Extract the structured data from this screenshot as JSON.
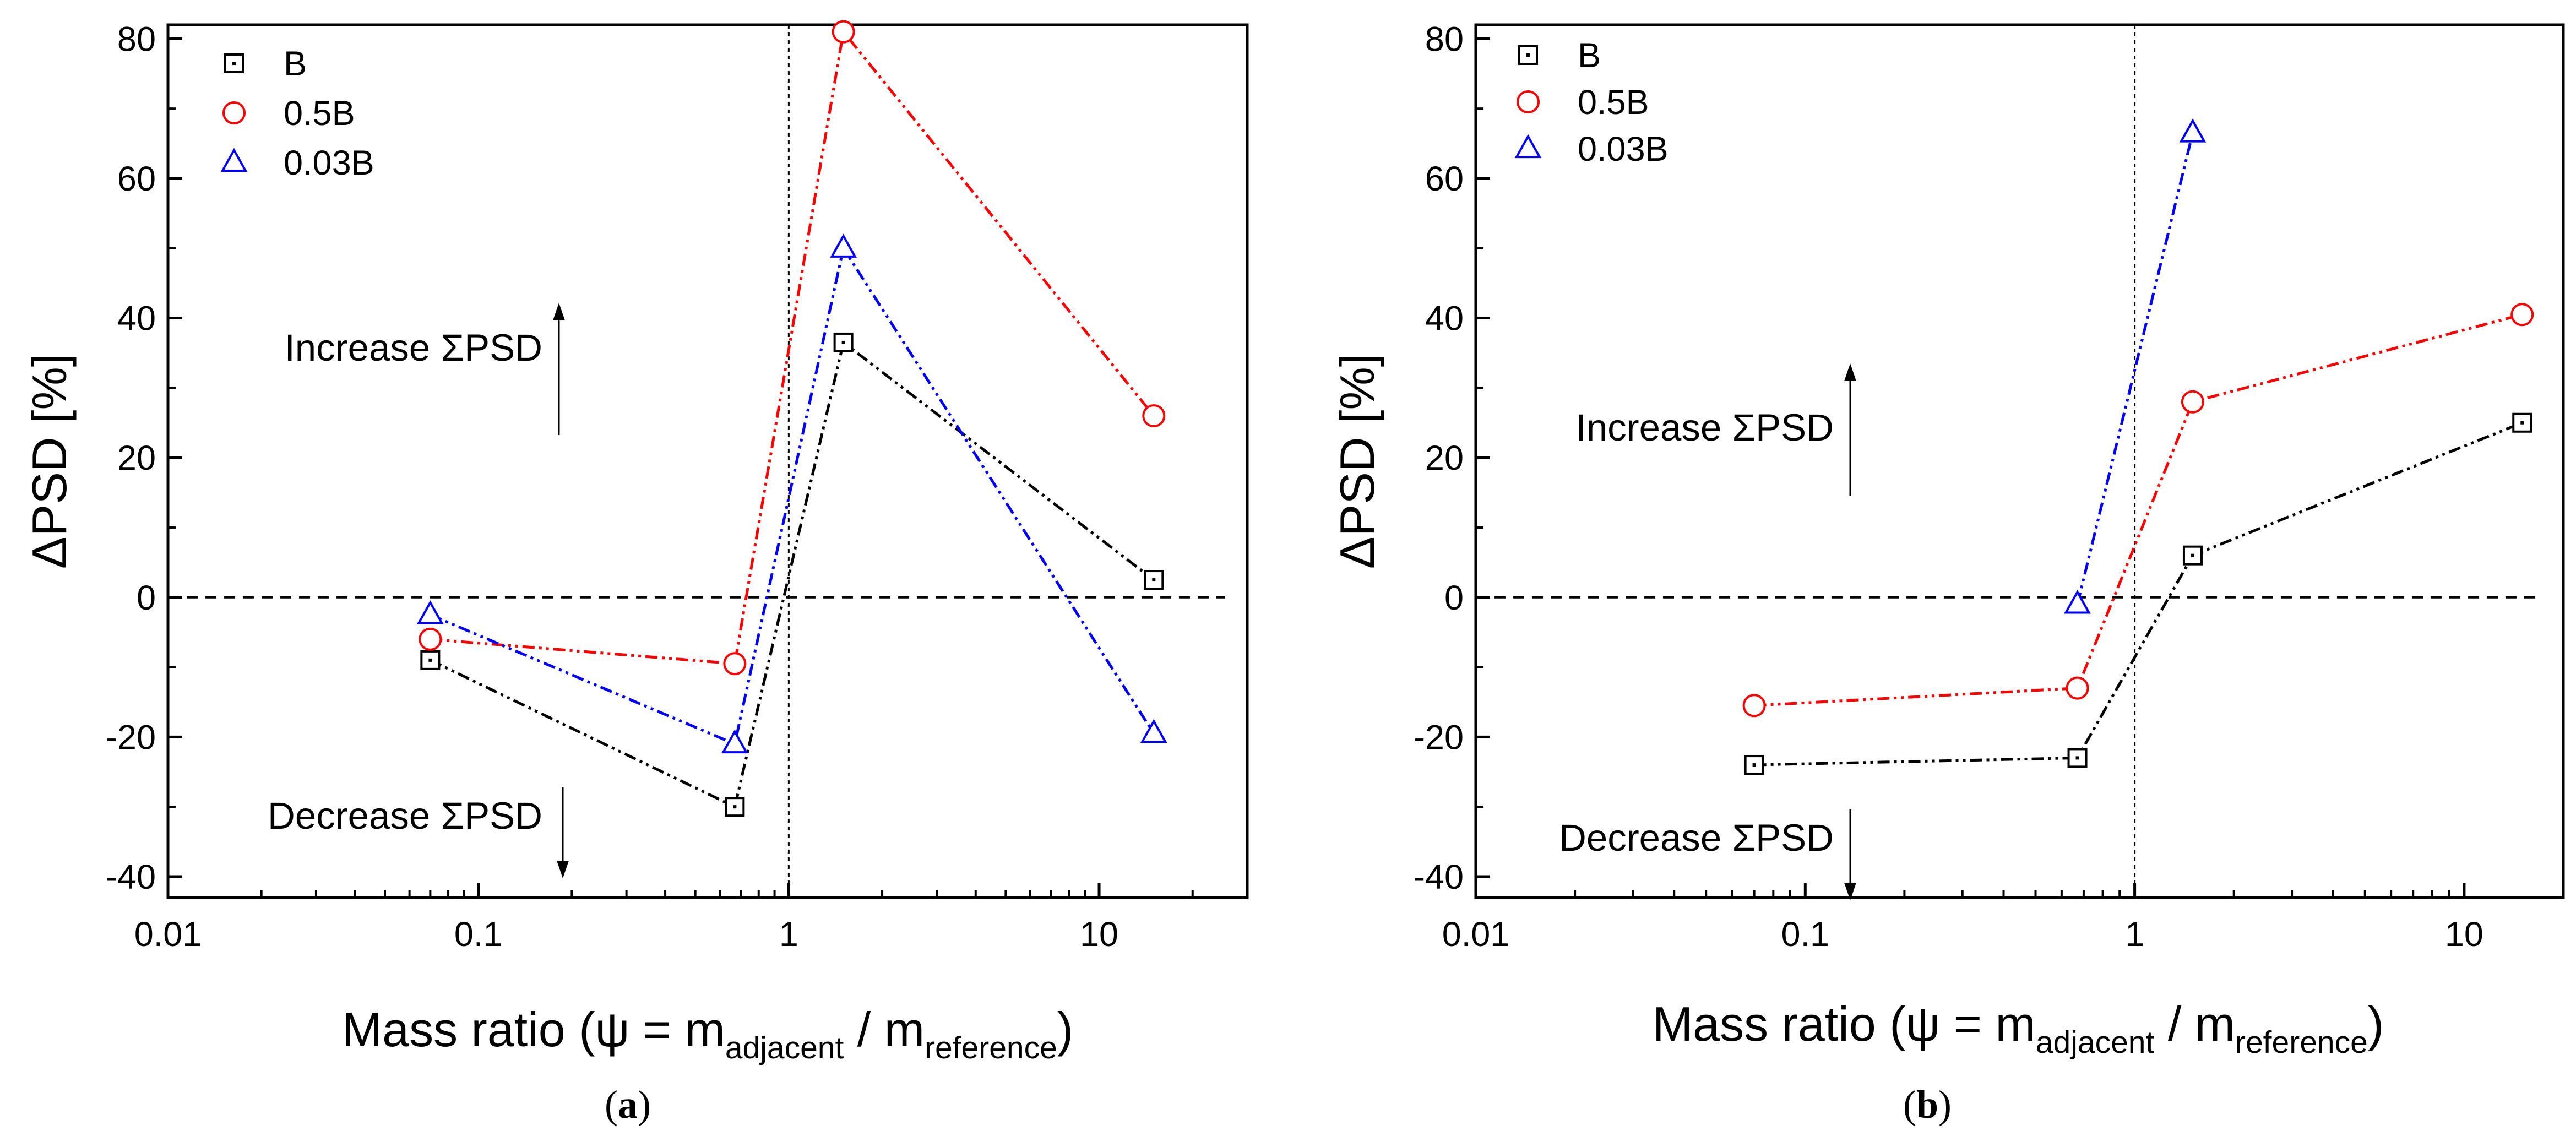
{
  "chart_data": [
    {
      "panel": "a",
      "type": "line",
      "xscale": "log",
      "xlim": [
        0.01,
        30
      ],
      "ylim": [
        -43,
        82
      ],
      "xticks": [
        0.01,
        0.1,
        1,
        10
      ],
      "xtick_labels": [
        "0.01",
        "0.1",
        "1",
        "10"
      ],
      "yticks": [
        -40,
        -20,
        0,
        20,
        40,
        60,
        80
      ],
      "ytick_labels": [
        "-40",
        "-20",
        "0",
        "20",
        "40",
        "60",
        "80"
      ],
      "ylabel": "ΔPSD [%]",
      "xlabel_parts": [
        "Mass ratio (ψ = m",
        "adjacent",
        " / m",
        "reference",
        ")"
      ],
      "panel_label": [
        "(",
        "a",
        ")"
      ],
      "reference_lines": {
        "horizontal_y": 0,
        "vertical_x": 1
      },
      "annotations": [
        {
          "text": "Increase ΣPSD",
          "direction": "up"
        },
        {
          "text": "Decrease ΣPSD",
          "direction": "down"
        }
      ],
      "legend_position": "top-left",
      "series": [
        {
          "name": "B",
          "marker": "square",
          "color": "#000000",
          "x": [
            0.07,
            0.67,
            1.5,
            15
          ],
          "y": [
            -9,
            -30,
            36.5,
            2.5
          ]
        },
        {
          "name": "0.5B",
          "marker": "circle",
          "color": "#ff0000",
          "x": [
            0.07,
            0.67,
            1.5,
            15
          ],
          "y": [
            -6,
            -9.5,
            81,
            26
          ]
        },
        {
          "name": "0.03B",
          "marker": "triangle",
          "color": "#0000ff",
          "x": [
            0.07,
            0.67,
            1.5,
            15
          ],
          "y": [
            -2.5,
            -21,
            50,
            -19.5
          ]
        }
      ]
    },
    {
      "panel": "b",
      "type": "line",
      "xscale": "log",
      "xlim": [
        0.01,
        20
      ],
      "ylim": [
        -43,
        82
      ],
      "xticks": [
        0.01,
        0.1,
        1,
        10
      ],
      "xtick_labels": [
        "0.01",
        "0.1",
        "1",
        "10"
      ],
      "yticks": [
        -40,
        -20,
        0,
        20,
        40,
        60,
        80
      ],
      "ytick_labels": [
        "-40",
        "-20",
        "0",
        "20",
        "40",
        "60",
        "80"
      ],
      "ylabel": "ΔPSD [%]",
      "xlabel_parts": [
        "Mass ratio (ψ = m",
        "adjacent",
        " / m",
        "reference",
        ")"
      ],
      "panel_label": [
        "(",
        "b",
        ")"
      ],
      "reference_lines": {
        "horizontal_y": 0,
        "vertical_x": 1
      },
      "annotations": [
        {
          "text": "Increase ΣPSD",
          "direction": "up"
        },
        {
          "text": "Decrease ΣPSD",
          "direction": "down"
        }
      ],
      "legend_position": "top-left",
      "series": [
        {
          "name": "B",
          "marker": "square",
          "color": "#000000",
          "x": [
            0.07,
            0.67,
            1.5,
            15
          ],
          "y": [
            -24,
            -23,
            6,
            25
          ]
        },
        {
          "name": "0.5B",
          "marker": "circle",
          "color": "#ff0000",
          "x": [
            0.07,
            0.67,
            1.5,
            15
          ],
          "y": [
            -15.5,
            -13,
            28,
            40.5
          ]
        },
        {
          "name": "0.03B",
          "marker": "triangle",
          "color": "#0000ff",
          "x": [
            0.67,
            1.5
          ],
          "y": [
            -1,
            66.5
          ]
        }
      ]
    }
  ]
}
